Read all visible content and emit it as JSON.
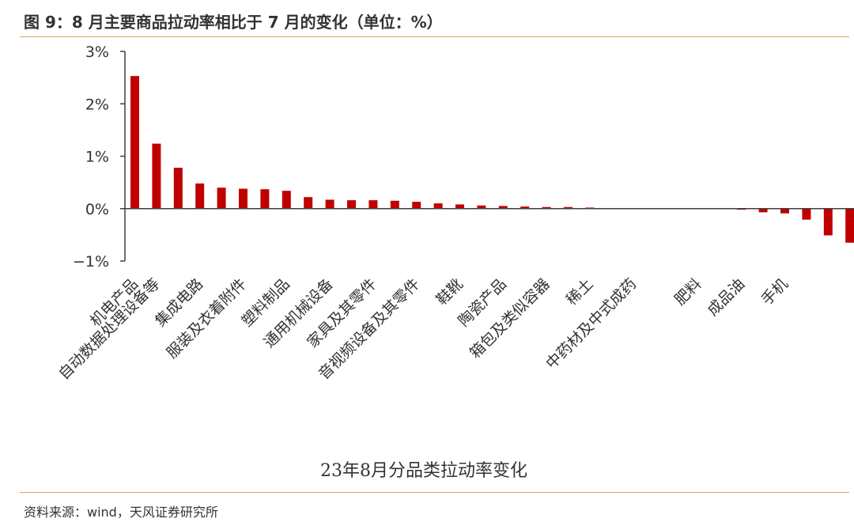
{
  "header": {
    "title": "图 9：8 月主要商品拉动率相比于 7 月的变化（单位：%）"
  },
  "footer": {
    "source": "资料来源：wind，天风证券研究所"
  },
  "colors": {
    "bar": "#c00000",
    "axis": "#404040",
    "rule": "#d3a56a"
  },
  "chart_data": {
    "type": "bar",
    "title": "",
    "xlabel": "23年8月分品类拉动率变化",
    "ylabel": "",
    "ylim": [
      -1,
      3
    ],
    "yticks": [
      -1,
      0,
      1,
      2,
      3
    ],
    "ytick_labels": [
      "−1%",
      "0%",
      "1%",
      "2%",
      "3%"
    ],
    "grid": false,
    "legend": "none",
    "categories": [
      "机电产品",
      "自动数据处理设备等",
      "集成电路",
      "服装及衣着附件",
      "塑料制品",
      "通用机械设备",
      "家具及其零件",
      "音视频设备及其零件",
      "鞋靴",
      "陶瓷产品",
      "箱包及类似容器",
      "稀土",
      "中药材及中式成药",
      "肥料",
      "成品油",
      "手机"
    ],
    "all_values": [
      2.53,
      1.24,
      0.78,
      0.48,
      0.4,
      0.38,
      0.37,
      0.34,
      0.22,
      0.17,
      0.16,
      0.16,
      0.15,
      0.13,
      0.1,
      0.08,
      0.06,
      0.05,
      0.04,
      0.03,
      0.03,
      0.02,
      0.01,
      0.01,
      0.0,
      0.0,
      0.0,
      -0.01,
      -0.02,
      -0.07,
      -0.09,
      -0.21,
      -0.51,
      -0.65
    ],
    "category_bar_index": [
      0,
      1,
      3,
      5,
      7,
      9,
      11,
      13,
      15,
      17,
      19,
      21,
      23,
      26,
      28,
      30
    ]
  }
}
